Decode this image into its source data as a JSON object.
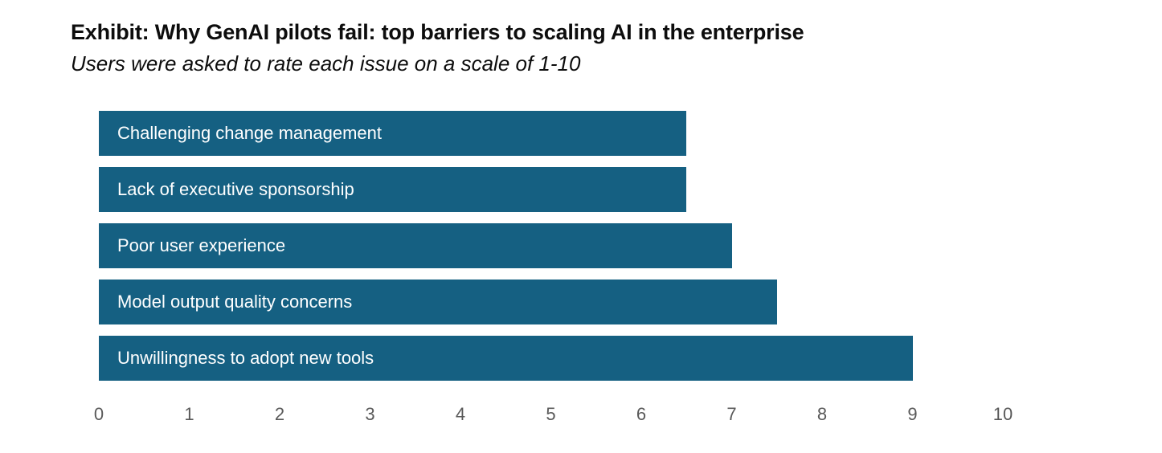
{
  "exhibit": {
    "title": "Exhibit: Why GenAI pilots fail: top barriers to scaling AI in the enterprise",
    "subtitle": "Users were asked to rate each issue on a scale of 1-10"
  },
  "colors": {
    "bar": "#156082",
    "bar_label_text": "#ffffff",
    "axis_text": "#595959",
    "title_text": "#0d0d0d",
    "background": "#ffffff"
  },
  "chart_data": {
    "type": "bar",
    "orientation": "horizontal",
    "title": "Exhibit: Why GenAI pilots fail: top barriers to scaling AI in the enterprise",
    "subtitle": "Users were asked to rate each issue on a scale of 1-10",
    "categories": [
      "Challenging change management",
      "Lack of executive sponsorship",
      "Poor user experience",
      "Model output quality concerns",
      "Unwillingness to adopt new tools"
    ],
    "values": [
      6.5,
      6.5,
      7,
      7.5,
      9
    ],
    "xlabel": "",
    "ylabel": "",
    "xlim": [
      0,
      10
    ],
    "x_ticks": [
      0,
      1,
      2,
      3,
      4,
      5,
      6,
      7,
      8,
      9,
      10
    ],
    "grid": false,
    "legend": false,
    "category_label_position": "inside-bar-left",
    "bar_color": "#156082"
  }
}
